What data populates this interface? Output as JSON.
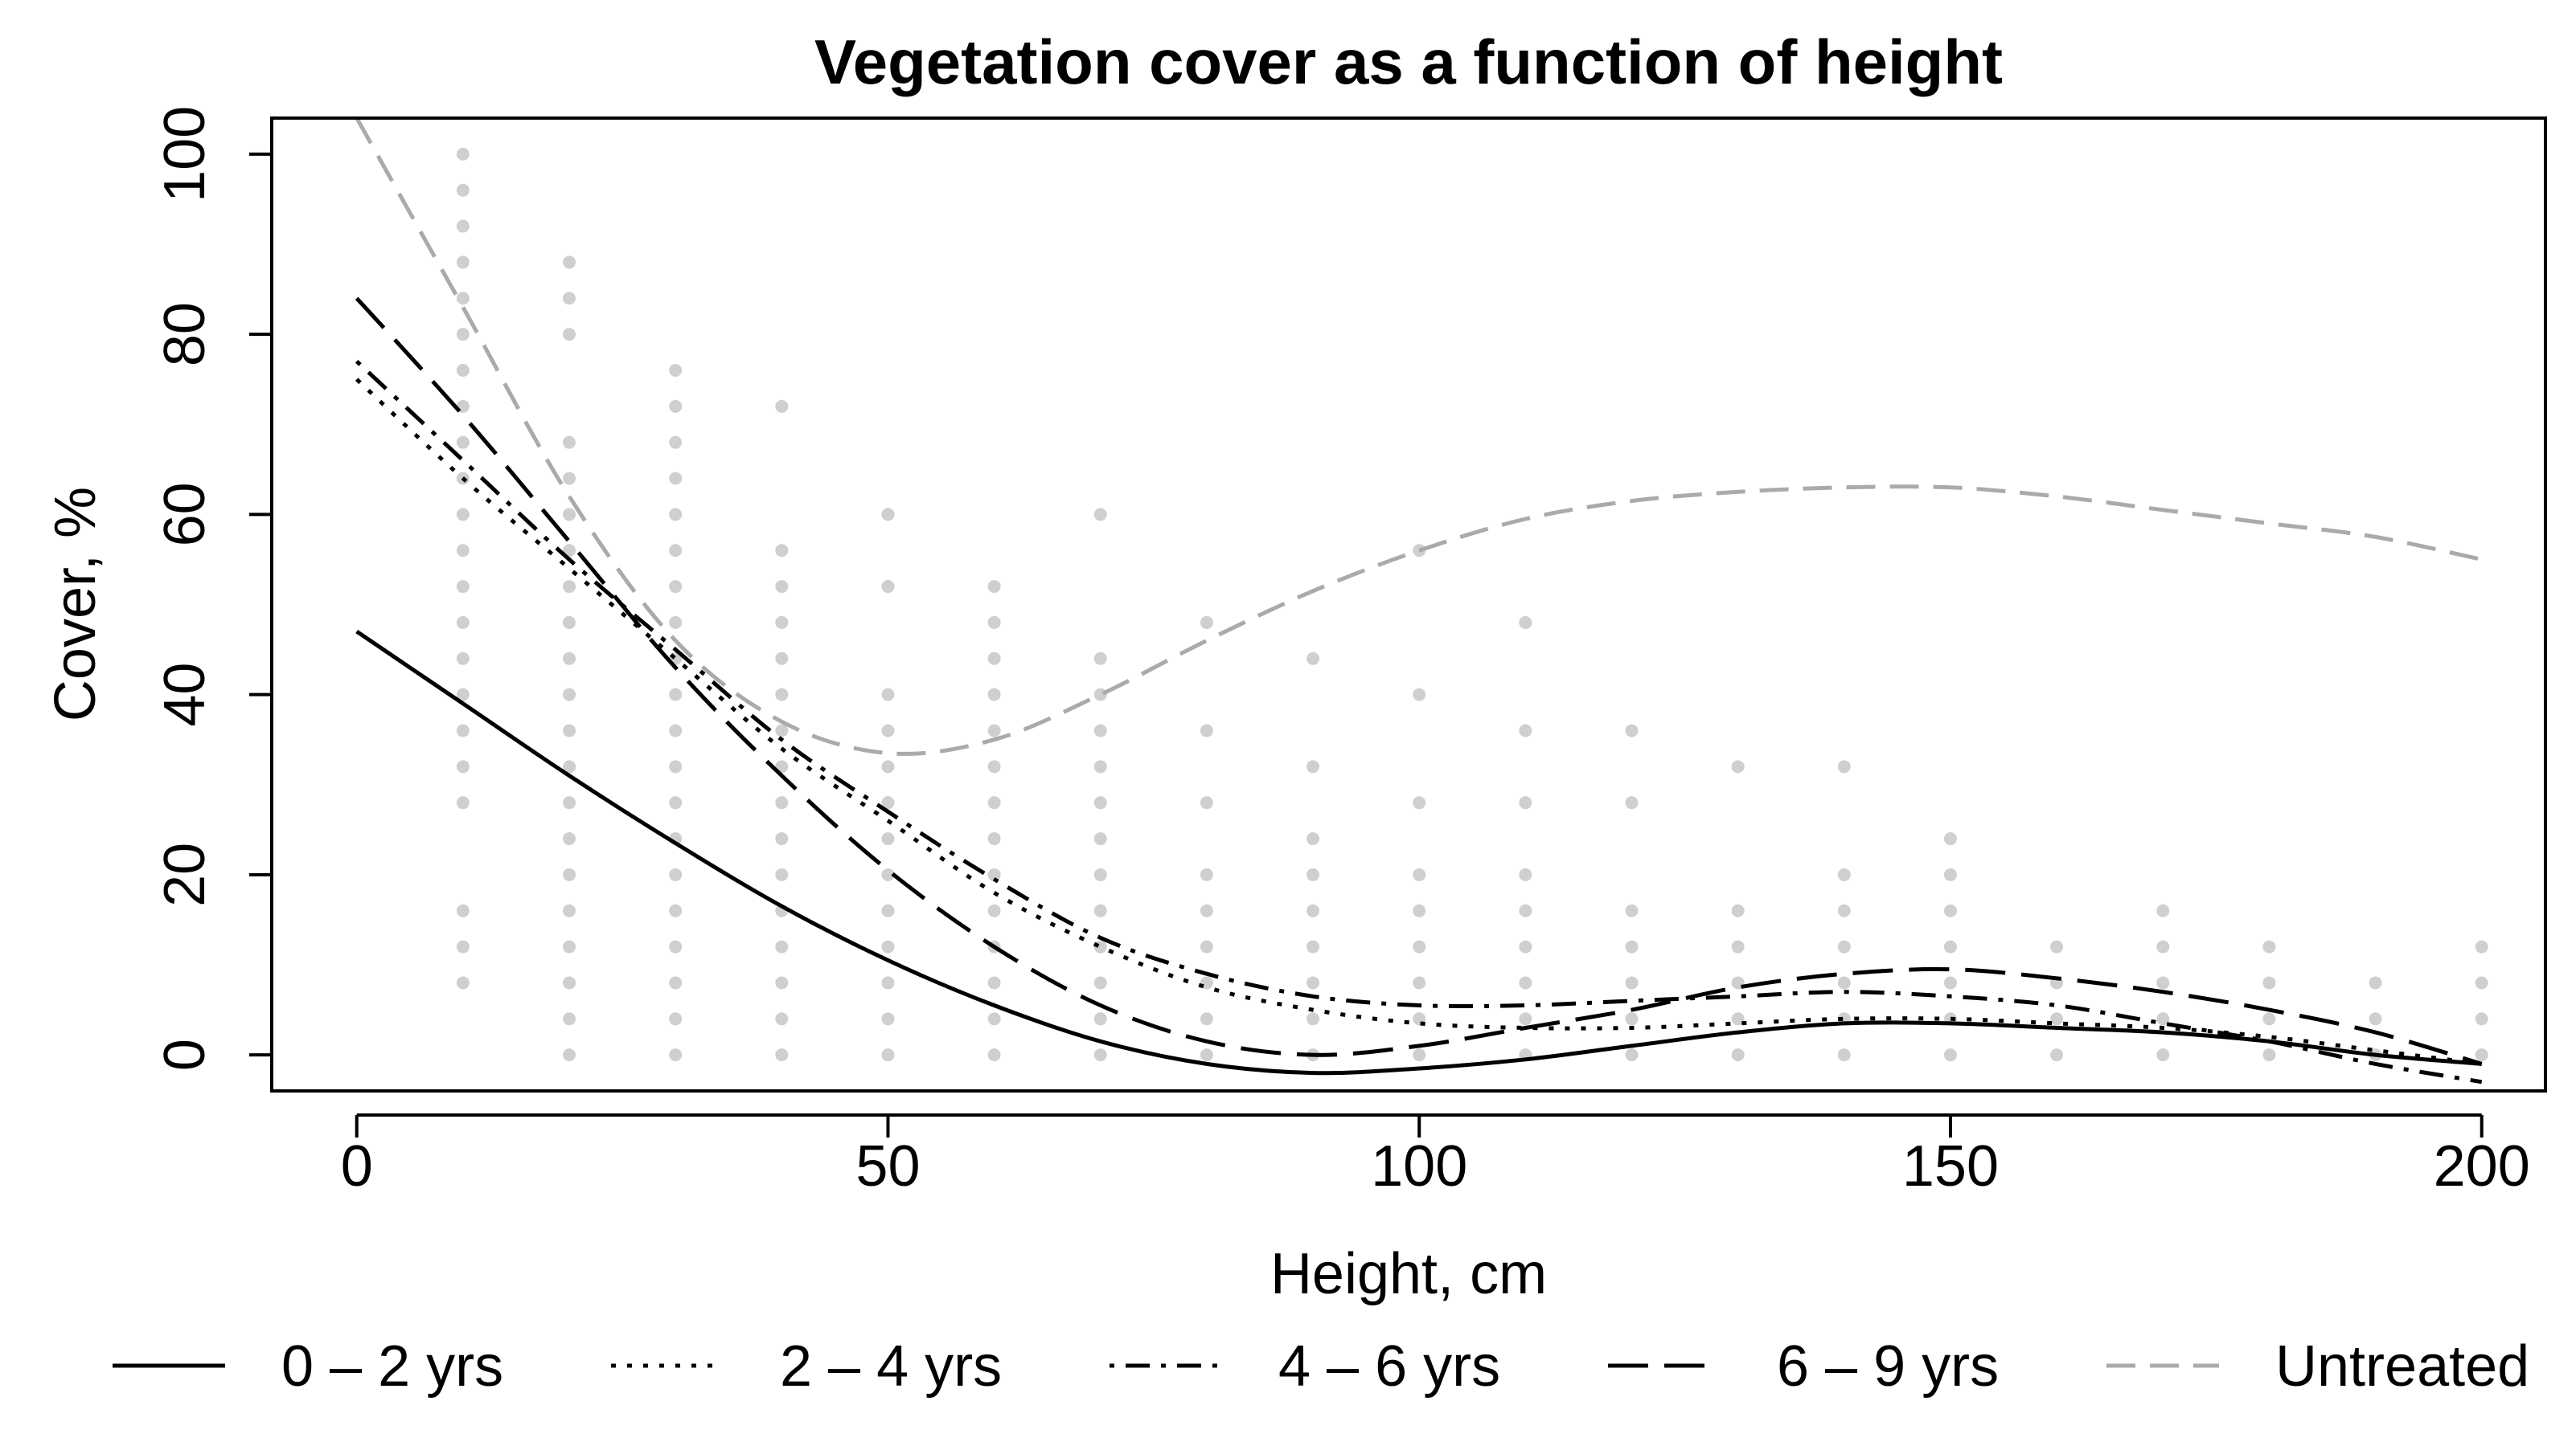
{
  "chart_data": {
    "type": "line",
    "title": "Vegetation cover as a function of height",
    "xlabel": "Height, cm",
    "ylabel": "Cover, %",
    "xlim": [
      -8,
      206
    ],
    "ylim": [
      -4,
      104
    ],
    "xticks": [
      0,
      50,
      100,
      150,
      200
    ],
    "yticks": [
      0,
      20,
      40,
      60,
      80,
      100
    ],
    "grid": false,
    "legend_position": "bottom",
    "series": [
      {
        "name": "0 – 2 yrs",
        "style": "solid",
        "color": "#000000",
        "x": [
          0,
          10,
          20,
          30,
          40,
          50,
          60,
          70,
          80,
          90,
          100,
          110,
          120,
          130,
          140,
          150,
          160,
          170,
          180,
          190,
          200
        ],
        "y": [
          47,
          39,
          31,
          23.5,
          16.5,
          10.5,
          5.5,
          1.5,
          -1,
          -2,
          -1.5,
          -0.5,
          1,
          2.5,
          3.5,
          3.5,
          3,
          2.5,
          1.5,
          0,
          -1
        ]
      },
      {
        "name": "2 – 4 yrs",
        "style": "dotted",
        "color": "#000000",
        "x": [
          0,
          10,
          20,
          30,
          40,
          50,
          60,
          70,
          80,
          90,
          100,
          110,
          120,
          130,
          140,
          150,
          160,
          170,
          180,
          190,
          200
        ],
        "y": [
          75,
          64,
          54,
          44,
          34,
          26,
          18,
          12,
          7.5,
          5,
          3.5,
          3,
          3,
          3.5,
          4,
          4,
          3.5,
          3,
          2,
          0.5,
          -1
        ]
      },
      {
        "name": "4 – 6 yrs",
        "style": "dotdash",
        "color": "#000000",
        "x": [
          0,
          10,
          20,
          30,
          40,
          50,
          60,
          70,
          80,
          90,
          100,
          110,
          120,
          130,
          140,
          150,
          160,
          170,
          180,
          190,
          200
        ],
        "y": [
          77,
          66,
          55,
          45,
          35,
          27,
          19.5,
          13,
          9,
          6.5,
          5.5,
          5.5,
          6,
          6.5,
          7,
          6.5,
          5.5,
          3.5,
          1.5,
          -1,
          -3
        ]
      },
      {
        "name": "6 – 9 yrs",
        "style": "longdash",
        "color": "#000000",
        "x": [
          0,
          10,
          20,
          30,
          40,
          50,
          60,
          70,
          80,
          90,
          100,
          110,
          120,
          130,
          140,
          150,
          160,
          170,
          180,
          190,
          200
        ],
        "y": [
          84,
          71,
          57,
          43,
          31,
          20.5,
          12,
          5.5,
          1.5,
          0,
          1,
          3,
          5,
          7.5,
          9,
          9.5,
          8.5,
          7,
          5,
          2.5,
          -1
        ]
      },
      {
        "name": "Untreated",
        "style": "dashed",
        "color": "#aaaaaa",
        "x": [
          0,
          10,
          20,
          30,
          40,
          50,
          60,
          70,
          80,
          90,
          100,
          110,
          120,
          130,
          140,
          150,
          160,
          170,
          180,
          190,
          200
        ],
        "y": [
          104,
          83,
          62,
          46,
          37,
          33.5,
          35,
          40,
          46,
          51.5,
          56,
          59.5,
          61.5,
          62.5,
          63,
          63,
          62,
          60.5,
          59,
          57.5,
          55
        ]
      }
    ],
    "scatter": {
      "color": "#cfcfcf",
      "x": [
        10,
        20,
        30,
        40,
        50,
        60,
        70,
        80,
        90,
        100,
        110,
        120,
        130,
        140,
        150,
        160,
        170,
        180,
        190,
        200
      ],
      "y": [
        [
          8,
          12,
          16,
          28,
          32,
          36,
          40,
          44,
          48,
          52,
          56,
          60,
          64,
          68,
          72,
          76,
          80,
          84,
          88,
          92,
          96,
          100
        ],
        [
          0,
          4,
          8,
          12,
          16,
          20,
          24,
          28,
          32,
          36,
          40,
          44,
          48,
          52,
          56,
          60,
          64,
          68,
          80,
          84,
          88
        ],
        [
          0,
          4,
          8,
          12,
          16,
          20,
          24,
          28,
          32,
          36,
          40,
          44,
          48,
          52,
          56,
          60,
          64,
          68,
          72,
          76
        ],
        [
          0,
          4,
          8,
          12,
          16,
          20,
          24,
          28,
          32,
          36,
          40,
          44,
          48,
          52,
          56,
          72
        ],
        [
          0,
          4,
          8,
          12,
          16,
          20,
          24,
          28,
          32,
          36,
          40,
          52,
          60
        ],
        [
          0,
          4,
          8,
          12,
          16,
          20,
          24,
          28,
          32,
          36,
          40,
          44,
          48,
          52
        ],
        [
          0,
          4,
          8,
          12,
          16,
          20,
          24,
          28,
          32,
          36,
          40,
          44,
          60
        ],
        [
          0,
          4,
          8,
          12,
          16,
          20,
          28,
          36,
          48
        ],
        [
          0,
          4,
          8,
          12,
          16,
          20,
          24,
          32,
          44
        ],
        [
          0,
          4,
          8,
          12,
          16,
          20,
          28,
          40,
          56
        ],
        [
          0,
          4,
          8,
          12,
          16,
          20,
          28,
          36,
          48
        ],
        [
          0,
          4,
          8,
          12,
          16,
          28,
          36
        ],
        [
          0,
          4,
          8,
          12,
          16,
          32
        ],
        [
          0,
          4,
          8,
          12,
          16,
          20,
          32
        ],
        [
          0,
          4,
          8,
          12,
          16,
          20,
          24
        ],
        [
          0,
          4,
          8,
          12
        ],
        [
          0,
          4,
          8,
          12,
          16
        ],
        [
          0,
          4,
          8,
          12
        ],
        [
          0,
          4,
          8
        ],
        [
          0,
          4,
          8,
          12
        ]
      ]
    }
  }
}
